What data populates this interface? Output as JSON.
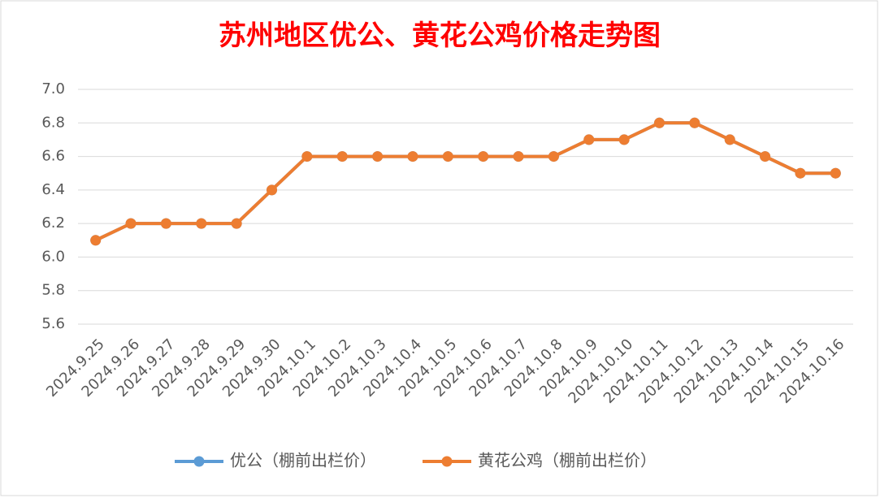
{
  "chart_data": {
    "type": "line",
    "title": "苏州地区优公、黄花公鸡价格走势图",
    "categories": [
      "2024.9.25",
      "2024.9.26",
      "2024.9.27",
      "2024.9.28",
      "2024.9.29",
      "2024.9.30",
      "2024.10.1",
      "2024.10.2",
      "2024.10.3",
      "2024.10.4",
      "2024.10.5",
      "2024.10.6",
      "2024.10.7",
      "2024.10.8",
      "2024.10.9",
      "2024.10.10",
      "2024.10.11",
      "2024.10.12",
      "2024.10.13",
      "2024.10.14",
      "2024.10.15",
      "2024.10.16"
    ],
    "series": [
      {
        "name": "优公（棚前出栏价）",
        "color": "#5b9bd5",
        "values": [
          6.1,
          6.2,
          6.2,
          6.2,
          6.2,
          6.4,
          6.6,
          6.6,
          6.6,
          6.6,
          6.6,
          6.6,
          6.6,
          6.6,
          6.7,
          6.7,
          6.8,
          6.8,
          6.7,
          6.6,
          6.5,
          6.5
        ]
      },
      {
        "name": "黄花公鸡（棚前出栏价）",
        "color": "#ed7d31",
        "values": [
          6.1,
          6.2,
          6.2,
          6.2,
          6.2,
          6.4,
          6.6,
          6.6,
          6.6,
          6.6,
          6.6,
          6.6,
          6.6,
          6.6,
          6.7,
          6.7,
          6.8,
          6.8,
          6.7,
          6.6,
          6.5,
          6.5
        ]
      }
    ],
    "ylim": [
      5.6,
      7.0
    ],
    "yticks": [
      5.6,
      5.8,
      {
        "value": 6,
        "label": "6.0"
      },
      6.2,
      6.4,
      6.6,
      6.8,
      {
        "value": 7,
        "label": "7.0"
      }
    ],
    "grid": true,
    "legend": "bottom"
  }
}
